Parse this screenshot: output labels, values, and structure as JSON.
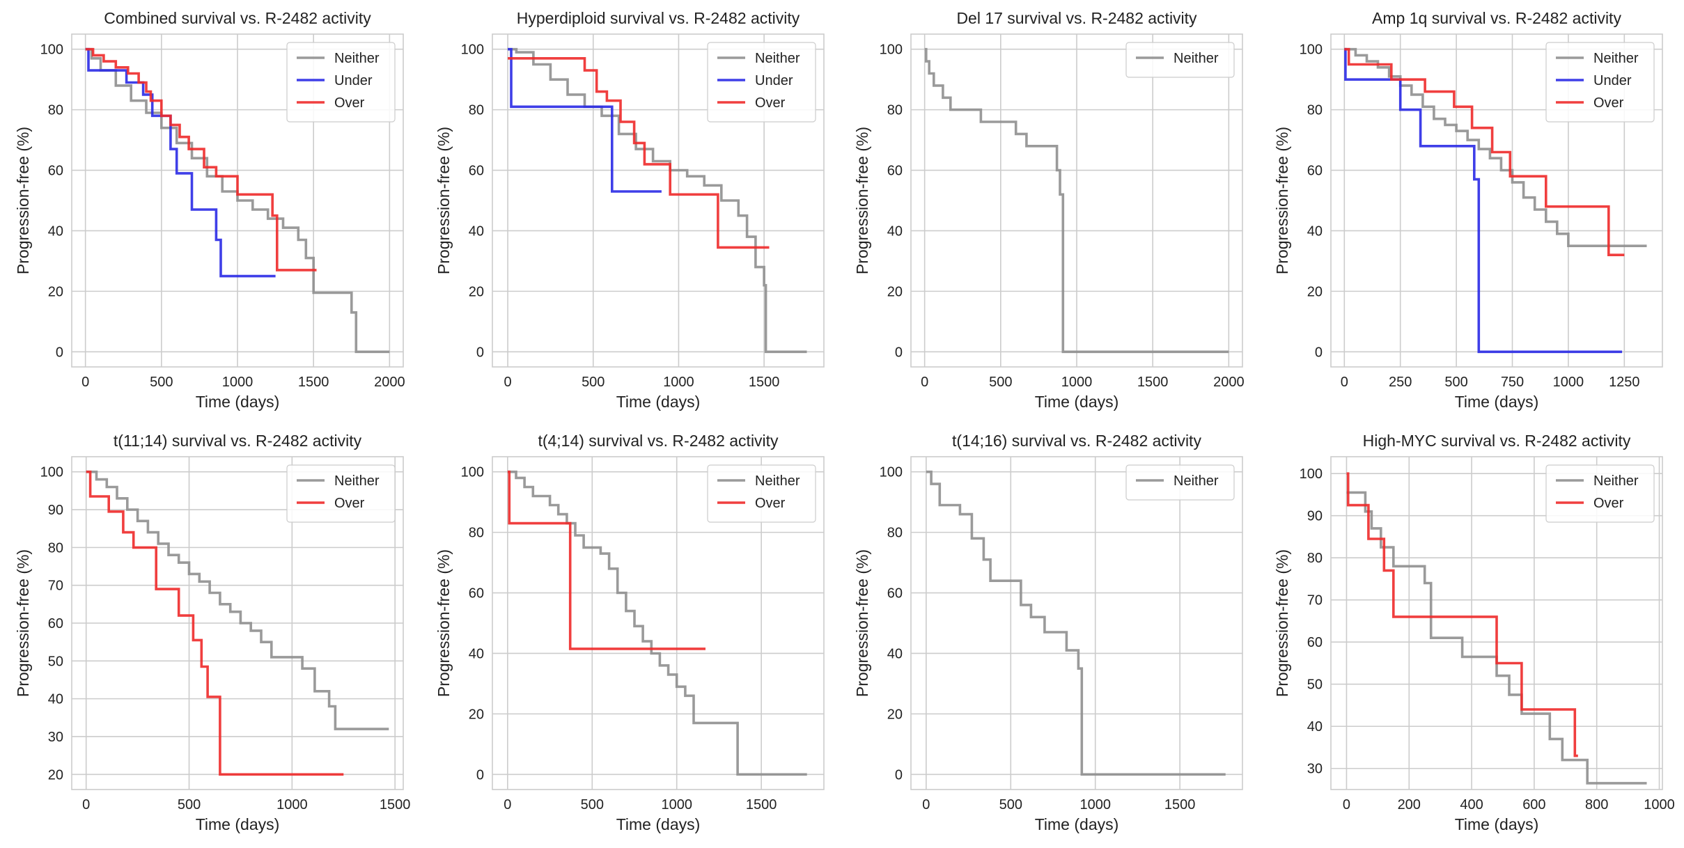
{
  "colors": {
    "Neither": "#8f8f8f",
    "Under": "#2a2ae6",
    "Over": "#ee2a2a"
  },
  "chart_data": [
    {
      "type": "line",
      "title": "Combined survival vs. R-2482 activity",
      "xlabel": "Time (days)",
      "ylabel": "Progression-free (%)",
      "xlim": [
        -90,
        2090
      ],
      "ylim": [
        -5,
        105
      ],
      "xticks": [
        0,
        500,
        1000,
        1500,
        2000
      ],
      "yticks": [
        0,
        20,
        40,
        60,
        80,
        100
      ],
      "grid": true,
      "legend": "top-right",
      "series": [
        {
          "name": "Neither",
          "x": [
            0,
            40,
            100,
            200,
            300,
            400,
            500,
            600,
            700,
            800,
            900,
            1000,
            1100,
            1200,
            1300,
            1400,
            1450,
            1500,
            1600,
            1750,
            1780,
            2000
          ],
          "y": [
            100,
            97,
            93,
            88,
            83,
            79,
            74,
            69,
            64,
            58,
            53,
            50,
            47,
            44,
            41,
            37,
            31,
            19.5,
            19.5,
            13,
            0,
            0
          ]
        },
        {
          "name": "Under",
          "x": [
            0,
            20,
            270,
            380,
            440,
            560,
            600,
            700,
            860,
            890,
            1250
          ],
          "y": [
            100,
            93,
            89,
            85,
            78,
            67,
            59,
            47,
            37,
            25,
            25
          ]
        },
        {
          "name": "Over",
          "x": [
            0,
            50,
            120,
            200,
            280,
            350,
            400,
            430,
            500,
            560,
            620,
            680,
            780,
            860,
            1000,
            1150,
            1230,
            1260,
            1520
          ],
          "y": [
            100,
            98,
            96,
            94,
            92,
            89,
            86,
            83,
            78,
            75,
            71,
            67,
            61,
            58,
            52,
            52,
            45,
            27,
            27
          ]
        }
      ]
    },
    {
      "type": "line",
      "title": "Hyperdiploid survival vs. R-2482 activity",
      "xlabel": "Time (days)",
      "ylabel": "Progression-free (%)",
      "xlim": [
        -90,
        1850
      ],
      "ylim": [
        -5,
        105
      ],
      "xticks": [
        0,
        500,
        1000,
        1500
      ],
      "yticks": [
        0,
        20,
        40,
        60,
        80,
        100
      ],
      "grid": true,
      "legend": "top-right",
      "series": [
        {
          "name": "Neither",
          "x": [
            0,
            50,
            150,
            250,
            350,
            450,
            550,
            650,
            750,
            850,
            950,
            1050,
            1150,
            1250,
            1350,
            1400,
            1450,
            1500,
            1510,
            1750
          ],
          "y": [
            100,
            99,
            95,
            90,
            85,
            81,
            78,
            72,
            67,
            63,
            60,
            58,
            55,
            50,
            45,
            38,
            28,
            22,
            0,
            0
          ]
        },
        {
          "name": "Under",
          "x": [
            0,
            20,
            600,
            610,
            900
          ],
          "y": [
            100,
            81,
            81,
            53,
            53
          ]
        },
        {
          "name": "Over",
          "x": [
            0,
            450,
            520,
            580,
            660,
            740,
            800,
            950,
            1230,
            1530
          ],
          "y": [
            97,
            93,
            86,
            83,
            76,
            69,
            62,
            52,
            34.5,
            34.5
          ]
        }
      ]
    },
    {
      "type": "line",
      "title": "Del 17 survival vs. R-2482 activity",
      "xlabel": "Time (days)",
      "ylabel": "Progression-free (%)",
      "xlim": [
        -90,
        2090
      ],
      "ylim": [
        -5,
        105
      ],
      "xticks": [
        0,
        500,
        1000,
        1500,
        2000
      ],
      "yticks": [
        0,
        20,
        40,
        60,
        80,
        100
      ],
      "grid": true,
      "legend": "top-right",
      "series": [
        {
          "name": "Neither",
          "x": [
            0,
            10,
            30,
            60,
            120,
            170,
            370,
            600,
            670,
            870,
            890,
            910,
            2000
          ],
          "y": [
            100,
            96,
            92,
            88,
            84,
            80,
            76,
            72,
            68,
            60,
            52,
            0,
            0
          ]
        }
      ]
    },
    {
      "type": "line",
      "title": "Amp 1q survival vs. R-2482 activity",
      "xlabel": "Time (days)",
      "ylabel": "Progression-free (%)",
      "xlim": [
        -60,
        1420
      ],
      "ylim": [
        -5,
        105
      ],
      "xticks": [
        0,
        250,
        500,
        750,
        1000,
        1250
      ],
      "yticks": [
        0,
        20,
        40,
        60,
        80,
        100
      ],
      "grid": true,
      "legend": "top-right",
      "series": [
        {
          "name": "Neither",
          "x": [
            0,
            50,
            100,
            150,
            200,
            250,
            300,
            350,
            400,
            450,
            500,
            550,
            600,
            650,
            700,
            750,
            800,
            850,
            900,
            950,
            1000,
            1350
          ],
          "y": [
            100,
            98,
            96,
            94,
            91,
            88,
            85,
            81,
            77,
            75,
            73,
            70,
            67,
            64,
            60,
            56,
            51,
            47,
            43,
            39,
            35,
            35
          ]
        },
        {
          "name": "Under",
          "x": [
            0,
            5,
            250,
            340,
            580,
            600,
            1240
          ],
          "y": [
            100,
            90,
            80,
            68,
            57,
            0,
            0
          ]
        },
        {
          "name": "Over",
          "x": [
            0,
            20,
            210,
            360,
            490,
            570,
            660,
            740,
            900,
            1180,
            1250
          ],
          "y": [
            100,
            95,
            90,
            86,
            81,
            74,
            66,
            58,
            48,
            32,
            32
          ]
        }
      ]
    },
    {
      "type": "line",
      "title": "t(11;14) survival vs. R-2482 activity",
      "xlabel": "Time (days)",
      "ylabel": "Progression-free (%)",
      "xlim": [
        -70,
        1540
      ],
      "ylim": [
        16,
        104
      ],
      "xticks": [
        0,
        500,
        1000,
        1500
      ],
      "yticks": [
        20,
        30,
        40,
        50,
        60,
        70,
        80,
        90,
        100
      ],
      "grid": true,
      "legend": "top-right",
      "series": [
        {
          "name": "Neither",
          "x": [
            0,
            50,
            100,
            150,
            200,
            250,
            300,
            350,
            400,
            450,
            500,
            550,
            600,
            650,
            700,
            750,
            800,
            850,
            900,
            1050,
            1110,
            1180,
            1210,
            1470
          ],
          "y": [
            100,
            98,
            96,
            93,
            90,
            87,
            84,
            81,
            78,
            76,
            73,
            71,
            68,
            65,
            63,
            60,
            58,
            55,
            51,
            48,
            42,
            38,
            32,
            32
          ]
        },
        {
          "name": "Over",
          "x": [
            0,
            20,
            110,
            180,
            230,
            340,
            450,
            520,
            560,
            590,
            650,
            1250
          ],
          "y": [
            100,
            93.5,
            89.5,
            84,
            80,
            69,
            62,
            55.5,
            48.5,
            40.5,
            20,
            20
          ]
        }
      ]
    },
    {
      "type": "line",
      "title": "t(4;14) survival vs. R-2482 activity",
      "xlabel": "Time (days)",
      "ylabel": "Progression-free (%)",
      "xlim": [
        -90,
        1870
      ],
      "ylim": [
        -5,
        105
      ],
      "xticks": [
        0,
        500,
        1000,
        1500
      ],
      "yticks": [
        0,
        20,
        40,
        60,
        80,
        100
      ],
      "grid": true,
      "legend": "top-right",
      "series": [
        {
          "name": "Neither",
          "x": [
            0,
            50,
            100,
            150,
            250,
            300,
            350,
            400,
            450,
            550,
            600,
            650,
            700,
            750,
            800,
            850,
            900,
            950,
            1000,
            1050,
            1100,
            1350,
            1360,
            1770
          ],
          "y": [
            100,
            98,
            95,
            92,
            89,
            86,
            83,
            79,
            75,
            73,
            68,
            60,
            54,
            49,
            44,
            40,
            36,
            33,
            29,
            26,
            17,
            17,
            0,
            0
          ]
        },
        {
          "name": "Over",
          "x": [
            0,
            10,
            360,
            370,
            1170
          ],
          "y": [
            100,
            83,
            83,
            41.5,
            41.5
          ]
        }
      ]
    },
    {
      "type": "line",
      "title": "t(14;16) survival vs. R-2482 activity",
      "xlabel": "Time (days)",
      "ylabel": "Progression-free (%)",
      "xlim": [
        -90,
        1870
      ],
      "ylim": [
        -5,
        105
      ],
      "xticks": [
        0,
        500,
        1000,
        1500
      ],
      "yticks": [
        0,
        20,
        40,
        60,
        80,
        100
      ],
      "grid": true,
      "legend": "top-right",
      "series": [
        {
          "name": "Neither",
          "x": [
            0,
            30,
            80,
            200,
            270,
            340,
            380,
            560,
            620,
            700,
            830,
            900,
            920,
            1770
          ],
          "y": [
            100,
            96,
            89,
            86,
            78,
            71,
            64,
            56,
            52,
            47,
            41,
            35,
            0,
            0
          ]
        }
      ]
    },
    {
      "type": "line",
      "title": "High-MYC survival vs. R-2482 activity",
      "xlabel": "Time (days)",
      "ylabel": "Progression-free (%)",
      "xlim": [
        -50,
        1010
      ],
      "ylim": [
        25,
        104
      ],
      "xticks": [
        0,
        200,
        400,
        600,
        800,
        1000
      ],
      "yticks": [
        30,
        40,
        50,
        60,
        70,
        80,
        90,
        100
      ],
      "grid": true,
      "legend": "top-right",
      "series": [
        {
          "name": "Neither",
          "x": [
            0,
            60,
            80,
            110,
            150,
            250,
            270,
            370,
            480,
            520,
            560,
            650,
            690,
            770,
            960
          ],
          "y": [
            95.5,
            91,
            87,
            82.5,
            78,
            74,
            61,
            56.5,
            52,
            47.5,
            43,
            37,
            32,
            26.5,
            26.5
          ]
        },
        {
          "name": "Over",
          "x": [
            0,
            5,
            70,
            120,
            150,
            480,
            560,
            730,
            740
          ],
          "y": [
            100,
            92.5,
            84.5,
            77,
            66,
            55,
            44,
            33,
            33
          ]
        }
      ]
    }
  ]
}
